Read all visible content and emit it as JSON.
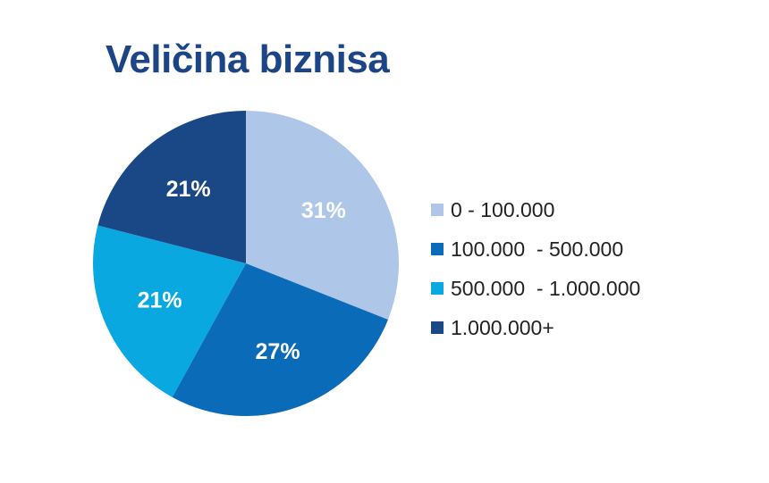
{
  "chart_data": {
    "type": "pie",
    "title": "Veličina biznisa",
    "slices": [
      {
        "label": "0 - 100.000",
        "value": 31,
        "display": "31%",
        "color": "#aec6e8"
      },
      {
        "label": "100.000  - 500.000",
        "value": 27,
        "display": "27%",
        "color": "#0a6bb8"
      },
      {
        "label": "500.000  - 1.000.000",
        "value": 21,
        "display": "21%",
        "color": "#0aa8e0"
      },
      {
        "label": "1.000.000+",
        "value": 21,
        "display": "21%",
        "color": "#1a4785"
      }
    ],
    "legend_position": "right"
  }
}
